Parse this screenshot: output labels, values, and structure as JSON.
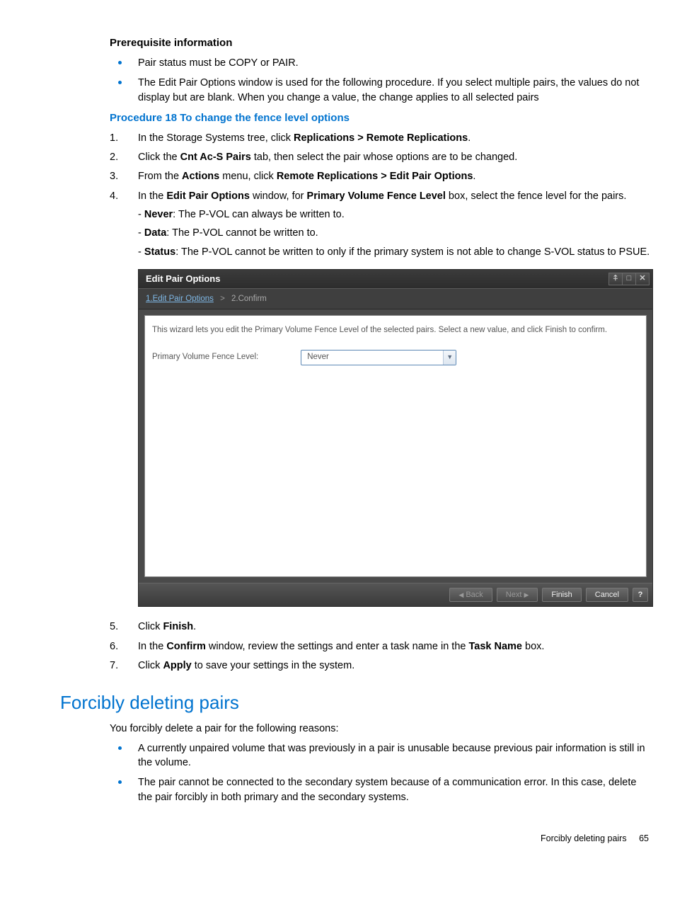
{
  "prereq": {
    "heading": "Prerequisite information",
    "items": [
      "Pair status must be COPY or PAIR.",
      "The Edit Pair Options window is used for the following procedure. If you select multiple pairs, the values do not display but are blank. When you change a value, the change applies to all selected pairs"
    ]
  },
  "procedure": {
    "heading": "Procedure 18 To change the fence level options",
    "step1_a": "In the Storage Systems tree, click ",
    "step1_b": "Replications > Remote Replications",
    "step1_c": ".",
    "step2_a": "Click the ",
    "step2_b": "Cnt Ac-S Pairs",
    "step2_c": " tab, then select the pair whose options are to be changed.",
    "step3_a": "From the ",
    "step3_b": "Actions",
    "step3_c": " menu, click ",
    "step3_d": "Remote Replications > Edit Pair Options",
    "step3_e": ".",
    "step4_a": "In the ",
    "step4_b": "Edit Pair Options",
    "step4_c": " window, for ",
    "step4_d": "Primary Volume Fence Level",
    "step4_e": " box, select the fence level for the pairs.",
    "step4_never_a": "- ",
    "step4_never_b": "Never",
    "step4_never_c": ": The P-VOL can always be written to.",
    "step4_data_a": "- ",
    "step4_data_b": "Data",
    "step4_data_c": ": The P-VOL cannot be written to.",
    "step4_status_a": "- ",
    "step4_status_b": "Status",
    "step4_status_c": ": The P-VOL cannot be written to only if the primary system is not able to change S-VOL status to PSUE.",
    "step5_a": "Click ",
    "step5_b": "Finish",
    "step5_c": ".",
    "step6_a": "In the ",
    "step6_b": "Confirm",
    "step6_c": " window, review the settings and enter a task name in the ",
    "step6_d": "Task Name",
    "step6_e": " box.",
    "step7_a": "Click ",
    "step7_b": "Apply",
    "step7_c": " to save your settings in the system."
  },
  "dialog": {
    "title": "Edit Pair Options",
    "crumb1": "1.Edit Pair Options",
    "crumb_sep": ">",
    "crumb2": "2.Confirm",
    "desc": "This wizard lets you edit the Primary Volume Fence Level of the selected pairs. Select a new value, and click Finish to confirm.",
    "label": "Primary Volume Fence Level:",
    "value": "Never",
    "back": "Back",
    "next": "Next",
    "finish": "Finish",
    "cancel": "Cancel",
    "help": "?",
    "win_icon1": "⍏",
    "win_icon2": "□",
    "win_icon3": "✕",
    "tri_left": "◀",
    "tri_right": "▶",
    "tri_down": "▼",
    "colors": {
      "header_bg": "#3b3b3b",
      "body_bg": "#ffffff",
      "link": "#7fb8e6",
      "select_border": "#5b87b5"
    }
  },
  "section2": {
    "heading": "Forcibly deleting pairs",
    "intro": "You forcibly delete a pair for the following reasons:",
    "items": [
      "A currently unpaired volume that was previously in a pair is unusable because previous pair information is still in the volume.",
      "The pair cannot be connected to the secondary system because of a communication error. In this case, delete the pair forcibly in both primary and the secondary systems."
    ]
  },
  "footer": {
    "label": "Forcibly deleting pairs",
    "page": "65"
  }
}
